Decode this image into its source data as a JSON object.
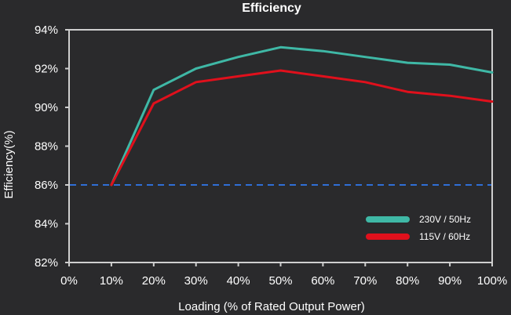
{
  "chart_data": {
    "type": "line",
    "title": "Efficiency",
    "xlabel": "Loading (% of Rated Output Power)",
    "ylabel": "Efficiency(%)",
    "xlim": [
      0,
      100
    ],
    "ylim": [
      82,
      94
    ],
    "x_ticks": [
      0,
      10,
      20,
      30,
      40,
      50,
      60,
      70,
      80,
      90,
      100
    ],
    "y_ticks": [
      82,
      84,
      86,
      88,
      90,
      92,
      94
    ],
    "x_tick_labels": [
      "0%",
      "10%",
      "20%",
      "30%",
      "40%",
      "50%",
      "60%",
      "70%",
      "80%",
      "90%",
      "100%"
    ],
    "y_tick_labels": [
      "82%",
      "84%",
      "86%",
      "88%",
      "90%",
      "92%",
      "94%"
    ],
    "grid": false,
    "legend_position": "bottom-right",
    "reference_line": {
      "y": 86,
      "style": "dashed",
      "color": "#2f6fd6"
    },
    "series": [
      {
        "name": "230V / 50Hz",
        "color": "#3fb8a6",
        "x": [
          10,
          20,
          30,
          40,
          50,
          60,
          70,
          80,
          90,
          100
        ],
        "y": [
          86.0,
          90.9,
          92.0,
          92.6,
          93.1,
          92.9,
          92.6,
          92.3,
          92.2,
          91.8
        ]
      },
      {
        "name": "115V / 60Hz",
        "color": "#e0101c",
        "x": [
          10,
          20,
          30,
          40,
          50,
          60,
          70,
          80,
          90,
          100
        ],
        "y": [
          86.0,
          90.2,
          91.3,
          91.6,
          91.9,
          91.6,
          91.3,
          90.8,
          90.6,
          90.3
        ]
      }
    ]
  }
}
